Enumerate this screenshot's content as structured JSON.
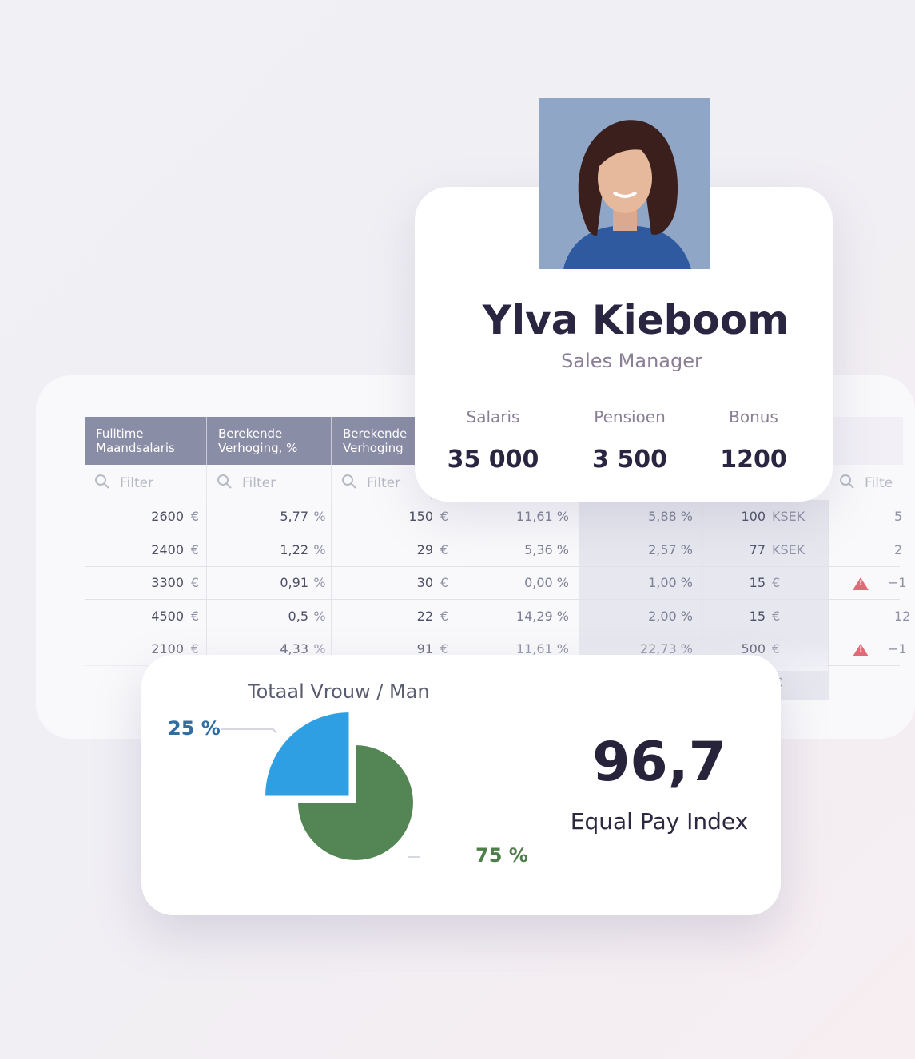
{
  "table": {
    "headers": [
      "Fulltime\nMaandsalaris",
      "Berekende\nVerhoging, %",
      "Berekende\nVerhoging"
    ],
    "filter_placeholder": "Filter",
    "filter_placeholder_cut": "Filte",
    "rows": [
      {
        "salary": "2600",
        "salary_unit": "€",
        "pct": "5,77",
        "pct_unit": "%",
        "amount": "150",
        "amount_unit": "€",
        "c4": "11,61 %",
        "c5": "5,88 %",
        "c6": "100",
        "c6_unit": "KSEK",
        "c7": "5",
        "warn": false
      },
      {
        "salary": "2400",
        "salary_unit": "€",
        "pct": "1,22",
        "pct_unit": "%",
        "amount": "29",
        "amount_unit": "€",
        "c4": "5,36 %",
        "c5": "2,57 %",
        "c6": "77",
        "c6_unit": "KSEK",
        "c7": "2",
        "warn": false
      },
      {
        "salary": "3300",
        "salary_unit": "€",
        "pct": "0,91",
        "pct_unit": "%",
        "amount": "30",
        "amount_unit": "€",
        "c4": "0,00 %",
        "c5": "1,00 %",
        "c6": "15",
        "c6_unit": "€",
        "c7": "−1",
        "warn": true
      },
      {
        "salary": "4500",
        "salary_unit": "€",
        "pct": "0,5",
        "pct_unit": "%",
        "amount": "22",
        "amount_unit": "€",
        "c4": "14,29 %",
        "c5": "2,00 %",
        "c6": "15",
        "c6_unit": "€",
        "c7": "12",
        "warn": false
      },
      {
        "salary": "2100",
        "salary_unit": "€",
        "pct": "4,33",
        "pct_unit": "%",
        "amount": "91",
        "amount_unit": "€",
        "c4": "11,61 %",
        "c5": "22,73 %",
        "c6": "500",
        "c6_unit": "€",
        "c7": "−1",
        "warn": true
      }
    ],
    "partial_unit": "€"
  },
  "profile": {
    "name": "Ylva Kieboom",
    "role": "Sales Manager",
    "stats": [
      {
        "label": "Salaris",
        "value": "35 000"
      },
      {
        "label": "Pensioen",
        "value": "3 500"
      },
      {
        "label": "Bonus",
        "value": "1200"
      }
    ]
  },
  "chart_card": {
    "title": "Totaal Vrouw / Man",
    "index_value": "96,7",
    "index_label": "Equal Pay Index"
  },
  "chart_data": {
    "type": "pie",
    "title": "Totaal Vrouw / Man",
    "slices": [
      {
        "label": "25 %",
        "value": 25,
        "color": "#2f9fe4"
      },
      {
        "label": "75 %",
        "value": 75,
        "color": "#548655"
      }
    ]
  },
  "colors": {
    "header_bg": "#8a8da6",
    "warning": "#e06a78",
    "heading_text": "#2a2540"
  }
}
